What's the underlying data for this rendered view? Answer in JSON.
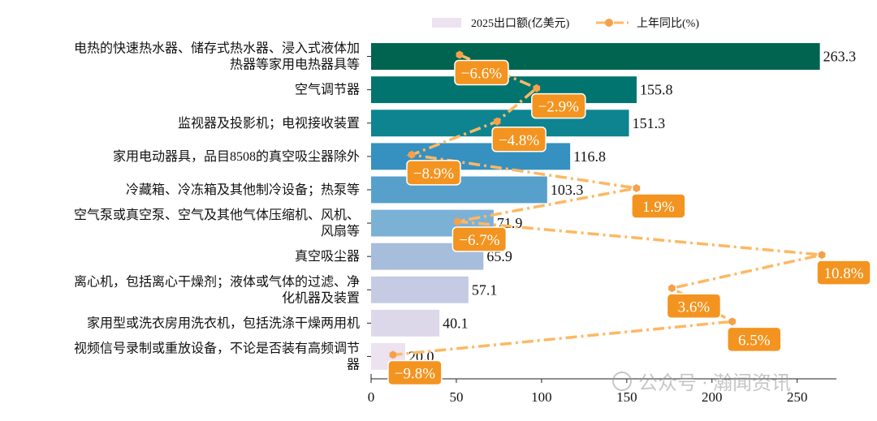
{
  "chart_data": {
    "type": "bar",
    "orientation": "horizontal",
    "categories": [
      "电热的快速热水器、储存式热水器、浸入式液体加\n热器等家用电热器具等",
      "空气调节器",
      "监视器及投影机；电视接收装置",
      "家用电动器具，品目8508的真空吸尘器除外",
      "冷藏箱、冷冻箱及其他制冷设备；热泵等",
      "空气泵或真空泵、空气及其他气体压缩机、风机、\n风扇等",
      "真空吸尘器",
      "离心机，包括离心干燥剂；液体或气体的过滤、净\n化机器及装置",
      "家用型或洗衣房用洗衣机，包括洗涤干燥两用机",
      "视频信号录制或重放设备，不论是否装有高频调节\n器"
    ],
    "series": [
      {
        "name": "2025出口额(亿美元)",
        "type": "bar",
        "values": [
          263.3,
          155.8,
          151.3,
          116.8,
          103.3,
          71.9,
          65.9,
          57.1,
          40.1,
          20.0
        ],
        "labels": [
          "263.3",
          "155.8",
          "151.3",
          "116.8",
          "103.3",
          "71.9",
          "65.9",
          "57.1",
          "40.1",
          "20.0"
        ],
        "colors": [
          "#016450",
          "#02746f",
          "#0e8490",
          "#3690c0",
          "#58a0cc",
          "#7cb1d6",
          "#a6bddb",
          "#c4cbe3",
          "#dcd8ea",
          "#ece2f0"
        ]
      },
      {
        "name": "上年同比(%)",
        "type": "line",
        "style": "dash-dot with markers",
        "color": "#fdb863",
        "marker_color": "#f5a04a",
        "label_box_color": "#f39420",
        "values": [
          -6.6,
          -2.9,
          -4.8,
          -8.9,
          1.9,
          -6.7,
          10.8,
          3.6,
          6.5,
          -9.8
        ],
        "labels": [
          "−6.6%",
          "−2.9%",
          "−4.8%",
          "−8.9%",
          "1.9%",
          "−6.7%",
          "10.8%",
          "3.6%",
          "6.5%",
          "−9.8%"
        ]
      }
    ],
    "xlim": [
      0,
      273
    ],
    "secondary_xlim": [
      -10.85,
      11.5
    ],
    "xticks": [
      "0",
      "50",
      "100",
      "150",
      "200",
      "250"
    ],
    "xtick_values": [
      0,
      50,
      100,
      150,
      200,
      250
    ],
    "grid": false,
    "legend": "top-center",
    "title": "",
    "xlabel": "",
    "ylabel": ""
  },
  "watermark": "公众号 · 瀚闻资讯"
}
